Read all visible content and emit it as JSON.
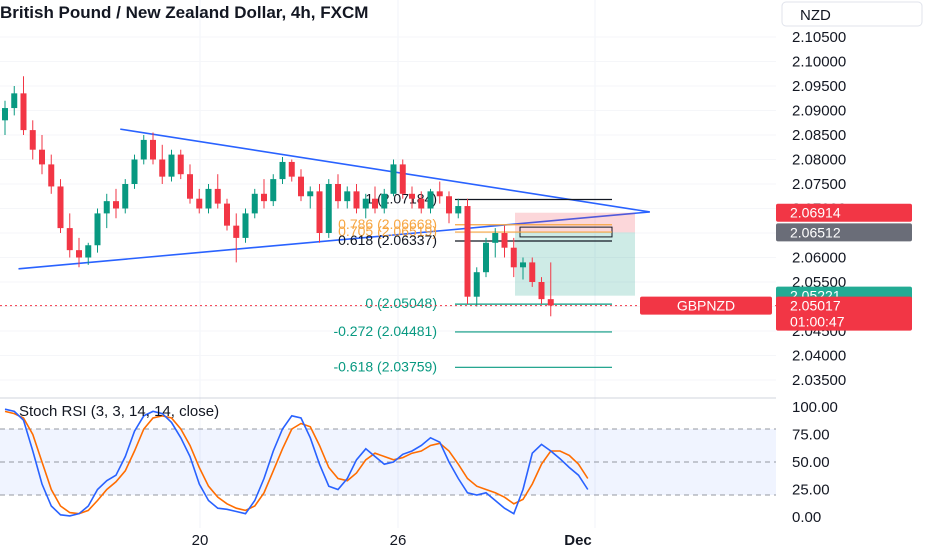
{
  "chart_data": {
    "type": "candlestick",
    "title": "British Pound / New Zealand Dollar, 4h, FXCM",
    "currency_button": "NZD",
    "price_axis": {
      "ticks": [
        "2.10500",
        "2.10000",
        "2.09500",
        "2.09000",
        "2.08500",
        "2.08000",
        "2.07500",
        "2.07000",
        "2.06500",
        "2.06000",
        "2.05500",
        "2.05000",
        "2.04500",
        "2.04000",
        "2.03500"
      ],
      "ylim": [
        2.0325,
        2.1085
      ]
    },
    "time_axis": {
      "ticks": [
        "20",
        "26",
        "Dec"
      ]
    },
    "candles": [
      {
        "o": 2.088,
        "h": 2.092,
        "l": 2.085,
        "c": 2.0905
      },
      {
        "o": 2.0905,
        "h": 2.095,
        "l": 2.089,
        "c": 2.0935
      },
      {
        "o": 2.0935,
        "h": 2.097,
        "l": 2.085,
        "c": 2.086
      },
      {
        "o": 2.086,
        "h": 2.088,
        "l": 2.08,
        "c": 2.082
      },
      {
        "o": 2.082,
        "h": 2.085,
        "l": 2.077,
        "c": 2.079
      },
      {
        "o": 2.079,
        "h": 2.081,
        "l": 2.073,
        "c": 2.0745
      },
      {
        "o": 2.0745,
        "h": 2.076,
        "l": 2.065,
        "c": 2.066
      },
      {
        "o": 2.066,
        "h": 2.069,
        "l": 2.06,
        "c": 2.0615
      },
      {
        "o": 2.0615,
        "h": 2.064,
        "l": 2.058,
        "c": 2.06
      },
      {
        "o": 2.06,
        "h": 2.063,
        "l": 2.0585,
        "c": 2.0625
      },
      {
        "o": 2.0625,
        "h": 2.07,
        "l": 2.061,
        "c": 2.069
      },
      {
        "o": 2.069,
        "h": 2.073,
        "l": 2.066,
        "c": 2.0715
      },
      {
        "o": 2.0715,
        "h": 2.074,
        "l": 2.068,
        "c": 2.07
      },
      {
        "o": 2.07,
        "h": 2.076,
        "l": 2.069,
        "c": 2.075
      },
      {
        "o": 2.075,
        "h": 2.081,
        "l": 2.074,
        "c": 2.08
      },
      {
        "o": 2.08,
        "h": 2.085,
        "l": 2.079,
        "c": 2.084
      },
      {
        "o": 2.084,
        "h": 2.0855,
        "l": 2.079,
        "c": 2.08
      },
      {
        "o": 2.08,
        "h": 2.083,
        "l": 2.075,
        "c": 2.0765
      },
      {
        "o": 2.0765,
        "h": 2.082,
        "l": 2.0755,
        "c": 2.081
      },
      {
        "o": 2.081,
        "h": 2.082,
        "l": 2.076,
        "c": 2.077
      },
      {
        "o": 2.077,
        "h": 2.079,
        "l": 2.071,
        "c": 2.072
      },
      {
        "o": 2.072,
        "h": 2.074,
        "l": 2.069,
        "c": 2.07
      },
      {
        "o": 2.07,
        "h": 2.075,
        "l": 2.069,
        "c": 2.074
      },
      {
        "o": 2.074,
        "h": 2.077,
        "l": 2.07,
        "c": 2.071
      },
      {
        "o": 2.071,
        "h": 2.072,
        "l": 2.0655,
        "c": 2.0665
      },
      {
        "o": 2.0665,
        "h": 2.069,
        "l": 2.059,
        "c": 2.064
      },
      {
        "o": 2.064,
        "h": 2.07,
        "l": 2.063,
        "c": 2.069
      },
      {
        "o": 2.069,
        "h": 2.074,
        "l": 2.068,
        "c": 2.073
      },
      {
        "o": 2.073,
        "h": 2.076,
        "l": 2.07,
        "c": 2.0715
      },
      {
        "o": 2.0715,
        "h": 2.077,
        "l": 2.0705,
        "c": 2.076
      },
      {
        "o": 2.076,
        "h": 2.0805,
        "l": 2.075,
        "c": 2.0795
      },
      {
        "o": 2.0795,
        "h": 2.08,
        "l": 2.0755,
        "c": 2.0765
      },
      {
        "o": 2.0765,
        "h": 2.078,
        "l": 2.0715,
        "c": 2.0725
      },
      {
        "o": 2.0725,
        "h": 2.0745,
        "l": 2.07,
        "c": 2.0735
      },
      {
        "o": 2.0735,
        "h": 2.075,
        "l": 2.063,
        "c": 2.065
      },
      {
        "o": 2.065,
        "h": 2.076,
        "l": 2.064,
        "c": 2.075
      },
      {
        "o": 2.075,
        "h": 2.077,
        "l": 2.07,
        "c": 2.0715
      },
      {
        "o": 2.0715,
        "h": 2.0745,
        "l": 2.07,
        "c": 2.0735
      },
      {
        "o": 2.0735,
        "h": 2.075,
        "l": 2.069,
        "c": 2.07
      },
      {
        "o": 2.07,
        "h": 2.073,
        "l": 2.068,
        "c": 2.072
      },
      {
        "o": 2.072,
        "h": 2.0745,
        "l": 2.069,
        "c": 2.07
      },
      {
        "o": 2.07,
        "h": 2.074,
        "l": 2.069,
        "c": 2.073
      },
      {
        "o": 2.073,
        "h": 2.08,
        "l": 2.0725,
        "c": 2.079
      },
      {
        "o": 2.079,
        "h": 2.08,
        "l": 2.072,
        "c": 2.073
      },
      {
        "o": 2.073,
        "h": 2.0745,
        "l": 2.07,
        "c": 2.072
      },
      {
        "o": 2.072,
        "h": 2.0735,
        "l": 2.069,
        "c": 2.07
      },
      {
        "o": 2.07,
        "h": 2.074,
        "l": 2.069,
        "c": 2.0735
      },
      {
        "o": 2.0735,
        "h": 2.0755,
        "l": 2.071,
        "c": 2.0725
      },
      {
        "o": 2.0725,
        "h": 2.0735,
        "l": 2.067,
        "c": 2.069
      },
      {
        "o": 2.069,
        "h": 2.072,
        "l": 2.068,
        "c": 2.0705
      },
      {
        "o": 2.0705,
        "h": 2.072,
        "l": 2.0505,
        "c": 2.052
      },
      {
        "o": 2.052,
        "h": 2.058,
        "l": 2.05,
        "c": 2.057
      },
      {
        "o": 2.057,
        "h": 2.064,
        "l": 2.056,
        "c": 2.063
      },
      {
        "o": 2.063,
        "h": 2.066,
        "l": 2.06,
        "c": 2.065
      },
      {
        "o": 2.065,
        "h": 2.0665,
        "l": 2.06,
        "c": 2.062
      },
      {
        "o": 2.062,
        "h": 2.064,
        "l": 2.056,
        "c": 2.058
      },
      {
        "o": 2.058,
        "h": 2.06,
        "l": 2.0555,
        "c": 2.059
      },
      {
        "o": 2.059,
        "h": 2.06,
        "l": 2.054,
        "c": 2.055
      },
      {
        "o": 2.055,
        "h": 2.056,
        "l": 2.0505,
        "c": 2.0515
      },
      {
        "o": 2.0515,
        "h": 2.059,
        "l": 2.048,
        "c": 2.0502
      }
    ],
    "triangle_lines": [
      {
        "from": {
          "bar": 2,
          "price": 2.0577
        },
        "to": {
          "bar": 67,
          "price": 2.0693
        }
      },
      {
        "from": {
          "bar": 13,
          "price": 2.0862
        },
        "to": {
          "bar": 67,
          "price": 2.0693
        }
      }
    ],
    "fib_levels": [
      {
        "label": "1 (2.07184)",
        "price": 2.07184,
        "color": "#131722"
      },
      {
        "label": "0.786 (2.06668)",
        "price": 2.06668,
        "color": "#f7a642"
      },
      {
        "label": "0.705 (2.06519)",
        "price": 2.06519,
        "color": "#f7a642"
      },
      {
        "label": "0.618 (2.06337)",
        "price": 2.06337,
        "color": "#131722"
      },
      {
        "label": "0 (2.05048)",
        "price": 2.05048,
        "color": "#089981"
      },
      {
        "label": "-0.272 (2.04481)",
        "price": 2.04481,
        "color": "#089981"
      },
      {
        "label": "-0.618 (2.03759)",
        "price": 2.03759,
        "color": "#089981"
      }
    ],
    "position": {
      "entry": 2.06512,
      "stop": 2.06914,
      "target": 2.05221
    },
    "price_tags": [
      {
        "text": "2.06914",
        "price": 2.06914,
        "color": "#f23645"
      },
      {
        "text": "2.06512",
        "price": 2.06512,
        "color": "#6a6d78"
      },
      {
        "text": "2.05221",
        "price": 2.05221,
        "color": "#22ab94"
      }
    ],
    "current_price": {
      "symbol": "GBPNZD",
      "price_label": "2.05017",
      "countdown": "01:00:47",
      "price": 2.05017,
      "color": "#f23645"
    },
    "stoch_rsi": {
      "title": "Stoch RSI (3, 3, 14, 14, close)",
      "ticks": [
        "100.00",
        "75.00",
        "50.00",
        "25.00",
        "0.00"
      ],
      "band": [
        20,
        80
      ],
      "k": [
        98,
        96,
        88,
        60,
        30,
        10,
        2,
        1,
        3,
        10,
        25,
        33,
        38,
        55,
        78,
        92,
        96,
        94,
        86,
        72,
        55,
        30,
        15,
        8,
        7,
        5,
        3,
        15,
        35,
        60,
        80,
        92,
        90,
        72,
        48,
        28,
        25,
        35,
        52,
        62,
        55,
        48,
        50,
        57,
        60,
        65,
        72,
        68,
        50,
        35,
        22,
        20,
        22,
        15,
        8,
        3,
        25,
        58,
        66,
        60,
        53,
        45,
        38,
        25
      ],
      "d": [
        96,
        94,
        90,
        75,
        50,
        25,
        10,
        4,
        3,
        6,
        15,
        25,
        32,
        42,
        60,
        80,
        90,
        92,
        90,
        80,
        65,
        45,
        28,
        18,
        12,
        8,
        6,
        10,
        22,
        42,
        62,
        80,
        85,
        82,
        65,
        45,
        35,
        33,
        40,
        52,
        58,
        55,
        52,
        54,
        58,
        60,
        65,
        67,
        60,
        48,
        35,
        28,
        25,
        22,
        18,
        12,
        16,
        30,
        48,
        60,
        60,
        56,
        48,
        35
      ]
    }
  }
}
